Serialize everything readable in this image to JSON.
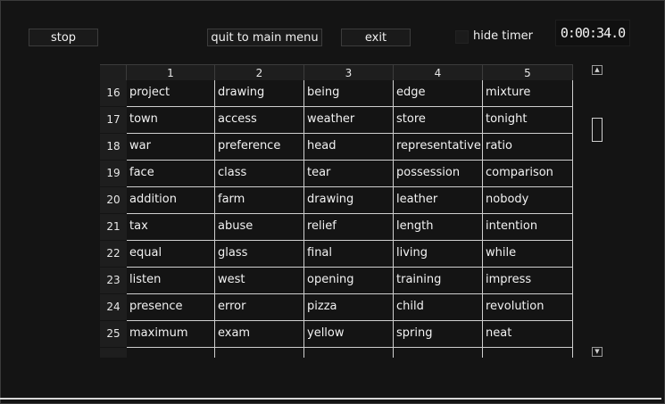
{
  "toolbar": {
    "stop_label": "stop",
    "quit_label": "quit to main menu",
    "exit_label": "exit",
    "hide_timer_label": "hide timer"
  },
  "timer": {
    "value": "0:00:34.0"
  },
  "grid": {
    "columns": [
      "1",
      "2",
      "3",
      "4",
      "5"
    ],
    "rows": [
      {
        "num": "16",
        "cells": [
          "project",
          "drawing",
          "being",
          "edge",
          "mixture"
        ]
      },
      {
        "num": "17",
        "cells": [
          "town",
          "access",
          "weather",
          "store",
          "tonight"
        ]
      },
      {
        "num": "18",
        "cells": [
          "war",
          "preference",
          "head",
          "representative",
          "ratio"
        ]
      },
      {
        "num": "19",
        "cells": [
          "face",
          "class",
          "tear",
          "possession",
          "comparison"
        ]
      },
      {
        "num": "20",
        "cells": [
          "addition",
          "farm",
          "drawing",
          "leather",
          "nobody"
        ]
      },
      {
        "num": "21",
        "cells": [
          "tax",
          "abuse",
          "relief",
          "length",
          "intention"
        ]
      },
      {
        "num": "22",
        "cells": [
          "equal",
          "glass",
          "final",
          "living",
          "while"
        ]
      },
      {
        "num": "23",
        "cells": [
          "listen",
          "west",
          "opening",
          "training",
          "impress"
        ]
      },
      {
        "num": "24",
        "cells": [
          "presence",
          "error",
          "pizza",
          "child",
          "revolution"
        ]
      },
      {
        "num": "25",
        "cells": [
          "maximum",
          "exam",
          "yellow",
          "spring",
          "neat"
        ]
      }
    ]
  },
  "icons": {
    "scroll_up": "up-arrow-icon",
    "scroll_down": "down-arrow-icon"
  }
}
